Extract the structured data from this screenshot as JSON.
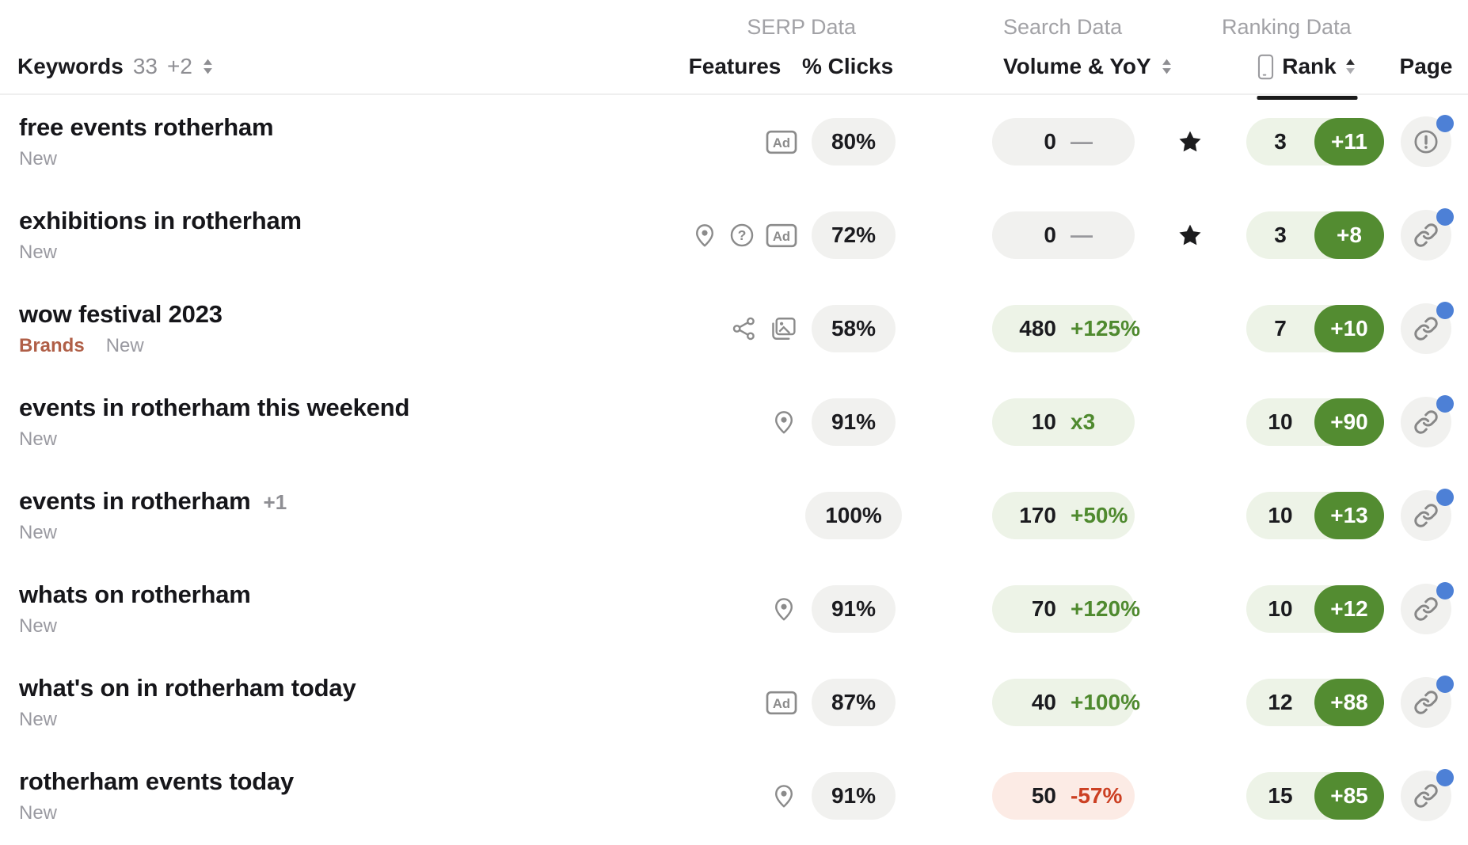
{
  "sort": {
    "active_column": "rank",
    "direction": "asc"
  },
  "colors": {
    "text_dark": "#1b1b1f",
    "text_gray": "#9a9aa1",
    "header_gray": "#a2a2a6",
    "count_gray": "#8e8e93",
    "brand_red": "#b05f47",
    "pill_gray_bg": "#f1f1ef",
    "green_bg": "#edf3e7",
    "green_text": "#4f8a2f",
    "green_pill": "#538c31",
    "red_text": "#cc4023",
    "red_bg": "#fcebe5",
    "blue_dot": "#4d80d6",
    "icon_gray": "#8b8b8b",
    "separator": "#efefef",
    "underline": "#1a1a1a"
  },
  "header": {
    "keywords": {
      "label": "Keywords",
      "count": "33",
      "delta": "+2"
    },
    "groups": {
      "serp": "SERP Data",
      "search": "Search Data",
      "ranking": "Ranking Data"
    },
    "columns": {
      "features": "Features",
      "clicks": "% Clicks",
      "volume": "Volume & YoY",
      "rank": "Rank",
      "page": "Page"
    }
  },
  "rows": [
    {
      "keyword": "free events rotherham",
      "suffix": "",
      "tags": [
        "New"
      ],
      "features": [
        "ad"
      ],
      "clicks": "80%",
      "volume": {
        "value": "0",
        "change": "—",
        "trend": "neutral"
      },
      "starred": true,
      "rank": {
        "value": "3",
        "delta": "+11"
      },
      "page_icon": "alert",
      "has_notification": true
    },
    {
      "keyword": "exhibitions in rotherham",
      "suffix": "",
      "tags": [
        "New"
      ],
      "features": [
        "pin",
        "question",
        "ad"
      ],
      "clicks": "72%",
      "volume": {
        "value": "0",
        "change": "—",
        "trend": "neutral"
      },
      "starred": true,
      "rank": {
        "value": "3",
        "delta": "+8"
      },
      "page_icon": "link",
      "has_notification": true
    },
    {
      "keyword": "wow festival 2023",
      "suffix": "",
      "tags": [
        "Brands",
        "New"
      ],
      "features": [
        "share",
        "image"
      ],
      "clicks": "58%",
      "volume": {
        "value": "480",
        "change": "+125%",
        "trend": "up"
      },
      "starred": false,
      "rank": {
        "value": "7",
        "delta": "+10"
      },
      "page_icon": "link",
      "has_notification": true
    },
    {
      "keyword": "events in rotherham this weekend",
      "suffix": "",
      "tags": [
        "New"
      ],
      "features": [
        "pin"
      ],
      "clicks": "91%",
      "volume": {
        "value": "10",
        "change": "x3",
        "trend": "up"
      },
      "starred": false,
      "rank": {
        "value": "10",
        "delta": "+90"
      },
      "page_icon": "link",
      "has_notification": true
    },
    {
      "keyword": "events in rotherham",
      "suffix": "+1",
      "tags": [
        "New"
      ],
      "features": [],
      "clicks": "100%",
      "volume": {
        "value": "170",
        "change": "+50%",
        "trend": "up"
      },
      "starred": false,
      "rank": {
        "value": "10",
        "delta": "+13"
      },
      "page_icon": "link",
      "has_notification": true
    },
    {
      "keyword": "whats on rotherham",
      "suffix": "",
      "tags": [
        "New"
      ],
      "features": [
        "pin"
      ],
      "clicks": "91%",
      "volume": {
        "value": "70",
        "change": "+120%",
        "trend": "up"
      },
      "starred": false,
      "rank": {
        "value": "10",
        "delta": "+12"
      },
      "page_icon": "link",
      "has_notification": true
    },
    {
      "keyword": "what's on in rotherham today",
      "suffix": "",
      "tags": [
        "New"
      ],
      "features": [
        "ad"
      ],
      "clicks": "87%",
      "volume": {
        "value": "40",
        "change": "+100%",
        "trend": "up"
      },
      "starred": false,
      "rank": {
        "value": "12",
        "delta": "+88"
      },
      "page_icon": "link",
      "has_notification": true
    },
    {
      "keyword": "rotherham events today",
      "suffix": "",
      "tags": [
        "New"
      ],
      "features": [
        "pin"
      ],
      "clicks": "91%",
      "volume": {
        "value": "50",
        "change": "-57%",
        "trend": "down"
      },
      "starred": false,
      "rank": {
        "value": "15",
        "delta": "+85"
      },
      "page_icon": "link",
      "has_notification": true
    }
  ]
}
